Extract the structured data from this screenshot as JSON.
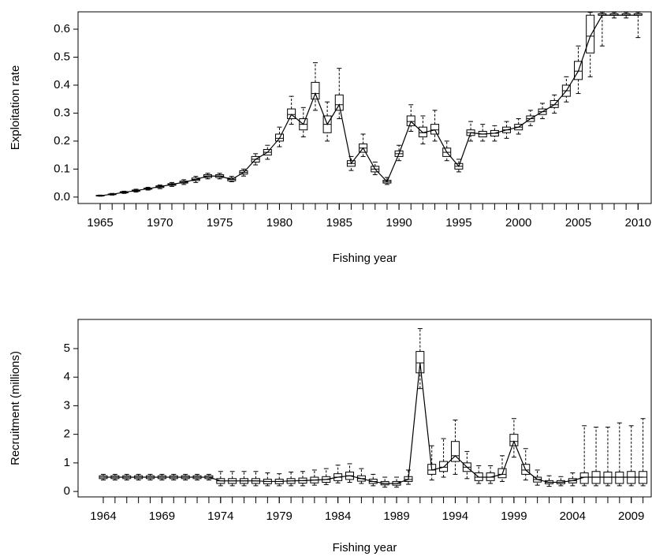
{
  "chart_data": [
    {
      "type": "box",
      "xlabel": "Fishing year",
      "ylabel": "Exploitation rate",
      "x": [
        1965,
        1966,
        1967,
        1968,
        1969,
        1970,
        1971,
        1972,
        1973,
        1974,
        1975,
        1976,
        1977,
        1978,
        1979,
        1980,
        1981,
        1982,
        1983,
        1984,
        1985,
        1986,
        1987,
        1988,
        1989,
        1990,
        1991,
        1992,
        1993,
        1994,
        1995,
        1996,
        1997,
        1998,
        1999,
        2000,
        2001,
        2002,
        2003,
        2004,
        2005,
        2006,
        2007,
        2008,
        2009,
        2010
      ],
      "low": [
        0.003,
        0.007,
        0.013,
        0.018,
        0.025,
        0.03,
        0.038,
        0.045,
        0.052,
        0.065,
        0.065,
        0.055,
        0.075,
        0.115,
        0.135,
        0.18,
        0.26,
        0.215,
        0.31,
        0.2,
        0.28,
        0.095,
        0.145,
        0.08,
        0.045,
        0.13,
        0.235,
        0.19,
        0.2,
        0.13,
        0.09,
        0.2,
        0.2,
        0.2,
        0.21,
        0.225,
        0.255,
        0.28,
        0.3,
        0.34,
        0.37,
        0.43,
        0.54,
        0.64,
        0.64,
        0.57
      ],
      "q1": [
        0.004,
        0.009,
        0.015,
        0.021,
        0.028,
        0.034,
        0.042,
        0.05,
        0.059,
        0.07,
        0.07,
        0.058,
        0.082,
        0.125,
        0.15,
        0.2,
        0.28,
        0.24,
        0.35,
        0.23,
        0.31,
        0.11,
        0.16,
        0.09,
        0.05,
        0.145,
        0.255,
        0.215,
        0.225,
        0.145,
        0.1,
        0.22,
        0.215,
        0.218,
        0.23,
        0.24,
        0.27,
        0.295,
        0.32,
        0.36,
        0.42,
        0.515,
        0.65,
        0.65,
        0.65,
        0.65
      ],
      "median": [
        0.005,
        0.01,
        0.017,
        0.023,
        0.03,
        0.037,
        0.045,
        0.053,
        0.063,
        0.075,
        0.075,
        0.063,
        0.088,
        0.135,
        0.16,
        0.21,
        0.295,
        0.26,
        0.37,
        0.26,
        0.33,
        0.12,
        0.175,
        0.1,
        0.055,
        0.155,
        0.27,
        0.23,
        0.24,
        0.16,
        0.11,
        0.23,
        0.225,
        0.228,
        0.24,
        0.25,
        0.28,
        0.305,
        0.33,
        0.38,
        0.45,
        0.575,
        0.65,
        0.65,
        0.65,
        0.65
      ],
      "q3": [
        0.006,
        0.011,
        0.019,
        0.025,
        0.032,
        0.04,
        0.048,
        0.057,
        0.068,
        0.08,
        0.08,
        0.068,
        0.094,
        0.145,
        0.17,
        0.225,
        0.315,
        0.28,
        0.41,
        0.29,
        0.365,
        0.13,
        0.19,
        0.11,
        0.06,
        0.165,
        0.29,
        0.25,
        0.26,
        0.175,
        0.12,
        0.24,
        0.235,
        0.238,
        0.25,
        0.26,
        0.29,
        0.315,
        0.345,
        0.4,
        0.485,
        0.65,
        0.655,
        0.655,
        0.655,
        0.655
      ],
      "high": [
        0.007,
        0.013,
        0.021,
        0.028,
        0.035,
        0.043,
        0.052,
        0.062,
        0.074,
        0.085,
        0.085,
        0.074,
        0.1,
        0.155,
        0.185,
        0.25,
        0.36,
        0.32,
        0.48,
        0.34,
        0.46,
        0.145,
        0.225,
        0.125,
        0.07,
        0.185,
        0.33,
        0.29,
        0.31,
        0.2,
        0.135,
        0.27,
        0.26,
        0.255,
        0.27,
        0.28,
        0.31,
        0.335,
        0.365,
        0.43,
        0.54,
        0.66,
        0.66,
        0.66,
        0.66,
        0.66
      ],
      "xlim": [
        1963.15,
        2011.1
      ],
      "xticks": [
        1965,
        1970,
        1975,
        1980,
        1985,
        1990,
        1995,
        2000,
        2005,
        2010
      ],
      "ylim": [
        -0.023,
        0.662
      ],
      "yticks": [
        {
          "value": 0,
          "label": "0.0"
        },
        0.1,
        0.2,
        0.3,
        0.4,
        0.5,
        0.6
      ]
    },
    {
      "type": "box",
      "xlabel": "Fishing year",
      "ylabel": "Recruitment (millions)",
      "x": [
        1964,
        1965,
        1966,
        1967,
        1968,
        1969,
        1970,
        1971,
        1972,
        1973,
        1974,
        1975,
        1976,
        1977,
        1978,
        1979,
        1980,
        1981,
        1982,
        1983,
        1984,
        1985,
        1986,
        1987,
        1988,
        1989,
        1990,
        1991,
        1992,
        1993,
        1994,
        1995,
        1996,
        1997,
        1998,
        1999,
        2000,
        2001,
        2002,
        2003,
        2004,
        2005,
        2006,
        2007,
        2008,
        2009,
        2010
      ],
      "low": [
        0.4,
        0.4,
        0.4,
        0.4,
        0.4,
        0.4,
        0.4,
        0.4,
        0.4,
        0.4,
        0.2,
        0.2,
        0.2,
        0.2,
        0.2,
        0.2,
        0.2,
        0.2,
        0.22,
        0.24,
        0.3,
        0.32,
        0.28,
        0.2,
        0.15,
        0.15,
        0.25,
        3.6,
        0.4,
        0.5,
        0.6,
        0.45,
        0.28,
        0.28,
        0.35,
        1.2,
        0.4,
        0.22,
        0.18,
        0.2,
        0.2,
        0.2,
        0.2,
        0.2,
        0.2,
        0.2,
        0.2
      ],
      "q1": [
        0.45,
        0.45,
        0.45,
        0.45,
        0.45,
        0.45,
        0.45,
        0.45,
        0.45,
        0.45,
        0.28,
        0.28,
        0.28,
        0.28,
        0.27,
        0.27,
        0.28,
        0.29,
        0.3,
        0.32,
        0.38,
        0.42,
        0.36,
        0.28,
        0.23,
        0.22,
        0.35,
        4.15,
        0.6,
        0.7,
        1.05,
        0.7,
        0.38,
        0.38,
        0.48,
        1.6,
        0.6,
        0.33,
        0.27,
        0.27,
        0.3,
        0.28,
        0.28,
        0.28,
        0.28,
        0.28,
        0.28
      ],
      "median": [
        0.5,
        0.5,
        0.5,
        0.5,
        0.5,
        0.5,
        0.5,
        0.5,
        0.5,
        0.5,
        0.37,
        0.37,
        0.37,
        0.37,
        0.35,
        0.35,
        0.37,
        0.38,
        0.4,
        0.42,
        0.5,
        0.55,
        0.45,
        0.35,
        0.28,
        0.28,
        0.42,
        4.5,
        0.75,
        0.85,
        1.25,
        0.85,
        0.5,
        0.5,
        0.6,
        1.75,
        0.75,
        0.42,
        0.32,
        0.32,
        0.38,
        0.5,
        0.5,
        0.5,
        0.5,
        0.5,
        0.5
      ],
      "q3": [
        0.55,
        0.55,
        0.55,
        0.55,
        0.55,
        0.55,
        0.55,
        0.55,
        0.55,
        0.55,
        0.45,
        0.45,
        0.45,
        0.45,
        0.43,
        0.43,
        0.45,
        0.47,
        0.5,
        0.52,
        0.62,
        0.68,
        0.55,
        0.43,
        0.35,
        0.35,
        0.52,
        4.9,
        0.95,
        1.05,
        1.75,
        1.0,
        0.65,
        0.65,
        0.8,
        2.0,
        0.95,
        0.5,
        0.38,
        0.38,
        0.45,
        0.65,
        0.7,
        0.68,
        0.68,
        0.7,
        0.7
      ],
      "high": [
        0.6,
        0.6,
        0.6,
        0.6,
        0.6,
        0.6,
        0.6,
        0.6,
        0.6,
        0.6,
        0.7,
        0.7,
        0.7,
        0.7,
        0.65,
        0.62,
        0.68,
        0.7,
        0.75,
        0.8,
        0.92,
        0.97,
        0.8,
        0.6,
        0.5,
        0.5,
        0.75,
        5.7,
        1.6,
        1.85,
        2.5,
        1.4,
        0.9,
        0.9,
        1.25,
        2.55,
        1.5,
        0.75,
        0.55,
        0.52,
        0.65,
        2.3,
        2.25,
        2.25,
        2.4,
        2.3,
        2.55
      ],
      "xlim": [
        1961.85,
        2010.7
      ],
      "xticks": [
        1964,
        1969,
        1974,
        1979,
        1984,
        1989,
        1994,
        1999,
        2004,
        2009
      ],
      "ylim": [
        -0.19,
        6.02
      ],
      "yticks": [
        0,
        1,
        2,
        3,
        4,
        5
      ]
    }
  ]
}
